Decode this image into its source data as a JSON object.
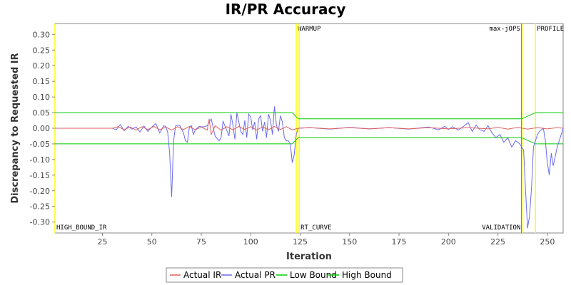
{
  "chart_data": {
    "type": "line",
    "title": "IR/PR Accuracy",
    "xlabel": "Iteration",
    "ylabel": "Discrepancy to Requested IR",
    "xlim": [
      1,
      258
    ],
    "ylim": [
      -0.335,
      0.335
    ],
    "x_ticks": [
      25,
      50,
      75,
      100,
      125,
      150,
      175,
      200,
      225,
      250
    ],
    "y_ticks": [
      -0.3,
      -0.25,
      -0.2,
      -0.15,
      -0.1,
      -0.05,
      0.0,
      0.05,
      0.1,
      0.15,
      0.2,
      0.25,
      0.3
    ],
    "grid": false,
    "legend_position": "bottom",
    "markers": [
      {
        "label": "HIGH_BOUND_IR",
        "x": 1,
        "color": "#ffff00",
        "label_pos": "bottom-right"
      },
      {
        "label": "WARMUP",
        "x": 123,
        "color": "#ffff00",
        "label_pos": "top-right"
      },
      {
        "label": "RT_CURVE",
        "x": 124.5,
        "color": "#ffff00",
        "label_pos": "bottom-right"
      },
      {
        "label": "max-jOPS",
        "x": 237,
        "color": "#aa0000",
        "label_pos": "top-left"
      },
      {
        "label": "VALIDATION",
        "x": 237.2,
        "color": "#ffff00",
        "label_pos": "bottom-left"
      },
      {
        "label": "PROFILE",
        "x": 244,
        "color": "#ffff00",
        "label_pos": "top-right"
      }
    ],
    "series": [
      {
        "name": "Actual IR",
        "color": "#e06060",
        "x": [
          1,
          30,
          33,
          36,
          39,
          42,
          45,
          48,
          51,
          54,
          57,
          60,
          63,
          66,
          69,
          72,
          75,
          78,
          79,
          80,
          82,
          85,
          88,
          91,
          94,
          97,
          100,
          103,
          106,
          109,
          112,
          115,
          118,
          121,
          124,
          130,
          140,
          150,
          160,
          170,
          180,
          190,
          200,
          210,
          220,
          225,
          230,
          235,
          240,
          245,
          250,
          255,
          258
        ],
        "values": [
          0.0,
          0.0,
          0.005,
          -0.005,
          0.004,
          -0.006,
          0.005,
          -0.004,
          0.006,
          -0.005,
          0.004,
          -0.006,
          0.005,
          -0.004,
          0.006,
          -0.005,
          0.004,
          -0.006,
          0.03,
          -0.02,
          0.008,
          -0.006,
          0.005,
          -0.005,
          0.006,
          -0.004,
          0.005,
          -0.006,
          0.004,
          -0.005,
          0.006,
          -0.004,
          0.005,
          -0.005,
          0.0,
          0.002,
          -0.002,
          0.002,
          -0.002,
          0.002,
          -0.002,
          0.002,
          -0.002,
          0.002,
          -0.002,
          0.003,
          -0.003,
          0.003,
          -0.003,
          0.002,
          -0.002,
          0.002,
          0.0
        ]
      },
      {
        "name": "Actual PR",
        "color": "#6a6af0",
        "x": [
          1,
          30,
          32,
          34,
          36,
          38,
          40,
          42,
          44,
          46,
          48,
          50,
          52,
          54,
          56,
          57,
          58,
          59,
          60,
          61,
          62,
          64,
          66,
          67,
          68,
          69,
          70,
          71,
          72,
          74,
          76,
          78,
          80,
          82,
          84,
          85,
          86,
          88,
          89,
          90,
          91,
          92,
          93,
          94,
          95,
          96,
          97,
          98,
          99,
          100,
          101,
          102,
          103,
          104,
          105,
          106,
          107,
          108,
          109,
          110,
          111,
          112,
          113,
          114,
          115,
          116,
          117,
          118,
          119,
          120,
          121,
          122,
          123,
          124,
          130,
          140,
          150,
          160,
          170,
          180,
          190,
          195,
          198,
          200,
          202,
          205,
          208,
          210,
          212,
          214,
          216,
          218,
          220,
          222,
          224,
          226,
          228,
          230,
          232,
          234,
          236,
          238,
          239,
          240,
          241,
          242,
          243,
          244,
          245,
          246,
          247,
          248,
          249,
          250,
          251,
          252,
          253,
          254,
          255,
          256,
          258
        ],
        "values": [
          0.0,
          0.0,
          -0.005,
          0.012,
          -0.008,
          0.006,
          -0.003,
          0.004,
          -0.012,
          0.007,
          -0.01,
          0.004,
          0.015,
          -0.015,
          0.008,
          0.006,
          -0.012,
          -0.08,
          -0.22,
          -0.04,
          0.008,
          0.01,
          -0.015,
          -0.04,
          -0.045,
          0.005,
          0.008,
          -0.02,
          -0.004,
          0.006,
          0.004,
          0.008,
          0.03,
          -0.025,
          -0.04,
          -0.03,
          0.022,
          -0.008,
          -0.025,
          0.045,
          0.01,
          -0.035,
          0.05,
          0.02,
          -0.01,
          -0.02,
          0.025,
          -0.03,
          0.045,
          0.035,
          -0.005,
          0.02,
          -0.035,
          0.03,
          0.04,
          -0.01,
          0.02,
          -0.03,
          0.045,
          0.025,
          -0.02,
          0.07,
          0.01,
          -0.01,
          0.04,
          0.02,
          -0.03,
          -0.04,
          -0.04,
          -0.05,
          -0.11,
          -0.085,
          -0.02,
          0.0,
          0.002,
          -0.003,
          0.003,
          -0.002,
          0.002,
          -0.003,
          0.004,
          -0.005,
          0.006,
          -0.004,
          0.005,
          -0.006,
          0.008,
          0.018,
          -0.01,
          0.01,
          -0.005,
          -0.01,
          0.008,
          -0.015,
          -0.03,
          -0.02,
          -0.045,
          -0.03,
          -0.06,
          -0.04,
          -0.05,
          -0.07,
          -0.2,
          -0.32,
          -0.28,
          -0.19,
          -0.06,
          -0.04,
          -0.02,
          -0.01,
          -0.005,
          0.0,
          -0.04,
          -0.11,
          -0.15,
          -0.08,
          -0.12,
          -0.09,
          -0.06,
          -0.04,
          0.0
        ]
      },
      {
        "name": "Low Bound",
        "color": "#00cc00",
        "x": [
          1,
          121,
          124,
          237,
          244,
          258
        ],
        "values": [
          -0.05,
          -0.05,
          -0.03,
          -0.03,
          -0.05,
          -0.05
        ]
      },
      {
        "name": "High Bound",
        "color": "#00cc00",
        "x": [
          1,
          121,
          124,
          237,
          244,
          258
        ],
        "values": [
          0.05,
          0.05,
          0.03,
          0.03,
          0.05,
          0.05
        ]
      }
    ]
  }
}
